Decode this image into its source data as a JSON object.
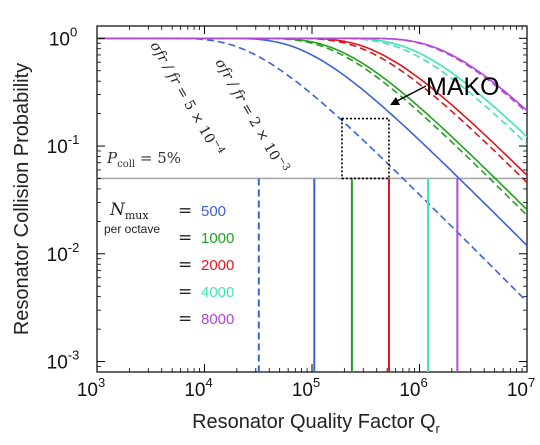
{
  "chart_data": {
    "type": "line",
    "title": "",
    "xlabel_main": "Resonator Quality Factor Q",
    "xlabel_sub": "r",
    "ylabel": "Resonator Collision Probability",
    "x_scale": "log",
    "y_scale": "log",
    "xlim": [
      1000,
      10000000
    ],
    "ylim": [
      0.0008,
      1.3
    ],
    "x_ticks": [
      {
        "value": 1000,
        "base": "10",
        "exp": "3"
      },
      {
        "value": 10000,
        "base": "10",
        "exp": "4"
      },
      {
        "value": 100000,
        "base": "10",
        "exp": "5"
      },
      {
        "value": 1000000,
        "base": "10",
        "exp": "6"
      },
      {
        "value": 10000000,
        "base": "10",
        "exp": "7"
      }
    ],
    "y_ticks": [
      {
        "value": 1,
        "base": "10",
        "exp": "0"
      },
      {
        "value": 0.1,
        "base": "10",
        "exp": "-1"
      },
      {
        "value": 0.01,
        "base": "10",
        "exp": "-2"
      },
      {
        "value": 0.001,
        "base": "10",
        "exp": "-3"
      }
    ],
    "threshold": {
      "value": 0.05,
      "label_main": "P",
      "label_sub": "coll",
      "label_rest": " = 5%",
      "color": "#a9a9a9"
    },
    "scatter_labels": {
      "solid": {
        "prefix": "σ",
        "mid": " = 2 × 10",
        "exp": "−3"
      },
      "dashed": {
        "prefix": "σ",
        "mid": " = 5 × 10",
        "exp": "−4"
      },
      "frac": "fr / fr"
    },
    "legend": {
      "title_main": "N",
      "title_sub": "mux",
      "title_note": "per octave",
      "equals": "=",
      "entries": [
        {
          "label": "500",
          "color": "#3b62d8"
        },
        {
          "label": "1000",
          "color": "#22a01e"
        },
        {
          "label": "2000",
          "color": "#e0161e"
        },
        {
          "label": "4000",
          "color": "#3fe6b5"
        },
        {
          "label": "8000",
          "color": "#b048d8"
        }
      ]
    },
    "annotation": {
      "text": "MAKO",
      "box_q": [
        190000,
        520000
      ],
      "box_p": [
        0.05,
        0.18
      ]
    },
    "series": [
      {
        "name": "500",
        "color": "#3b62d8",
        "style": "solid",
        "x0": 120000,
        "cross_q": 105000
      },
      {
        "name": "500",
        "color": "#3b62d8",
        "style": "dashed",
        "x0": 36000,
        "cross_q": 32000
      },
      {
        "name": "1000",
        "color": "#22a01e",
        "style": "solid",
        "x0": 260000,
        "cross_q": 235000
      },
      {
        "name": "1000",
        "color": "#22a01e",
        "style": "dashed",
        "x0": 230000,
        "cross_q": 0
      },
      {
        "name": "2000",
        "color": "#e0161e",
        "style": "solid",
        "x0": 550000,
        "cross_q": 520000
      },
      {
        "name": "2000",
        "color": "#e0161e",
        "style": "dashed",
        "x0": 470000,
        "cross_q": 0
      },
      {
        "name": "4000",
        "color": "#3fe6b5",
        "style": "solid",
        "x0": 1300000,
        "cross_q": 1200000
      },
      {
        "name": "4000",
        "color": "#3fe6b5",
        "style": "dashed",
        "x0": 1100000,
        "cross_q": 0
      },
      {
        "name": "8000",
        "color": "#b048d8",
        "style": "solid",
        "x0": 2400000,
        "cross_q": 2250000
      },
      {
        "name": "8000",
        "color": "#b048d8",
        "style": "dashed",
        "x0": 2300000,
        "cross_q": 0
      }
    ]
  }
}
